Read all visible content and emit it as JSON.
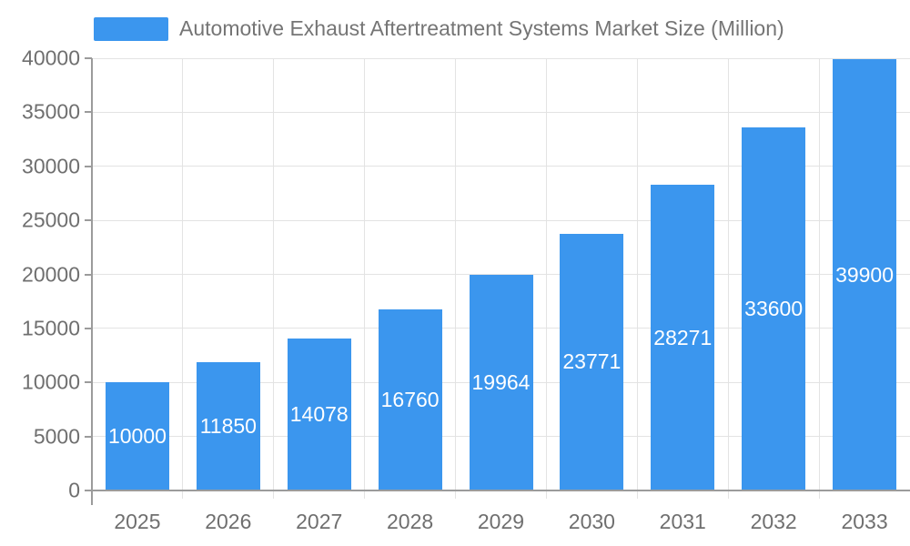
{
  "legend": {
    "label": "Automotive Exhaust Aftertreatment Systems Market Size (Million)"
  },
  "chart_data": {
    "type": "bar",
    "title": "Automotive Exhaust Aftertreatment Systems Market Size (Million)",
    "legend_entries": [
      "Automotive Exhaust Aftertreatment Systems Market Size (Million)"
    ],
    "legend_position": "top-left",
    "categories": [
      "2025",
      "2026",
      "2027",
      "2028",
      "2029",
      "2030",
      "2031",
      "2032",
      "2033"
    ],
    "values": [
      10000,
      11850,
      14078,
      16760,
      19964,
      23771,
      28271,
      33600,
      39900
    ],
    "value_labels": [
      "10000",
      "11850",
      "14078",
      "16760",
      "19964",
      "23771",
      "28271",
      "33600",
      "39900"
    ],
    "xlabel": "",
    "ylabel": "",
    "ylim": [
      0,
      40000
    ],
    "ytick_interval": 5000,
    "ytick_labels": [
      "0",
      "5000",
      "10000",
      "15000",
      "20000",
      "25000",
      "30000",
      "35000",
      "40000"
    ],
    "grid": "on",
    "colors": {
      "bar": "#3B96EE",
      "bar_value_text": "#ffffff",
      "axis_text": "#6F6F6F",
      "legend_text": "#757575",
      "grid_line": "#E3E3E3",
      "axis_line": "#9B9B9B"
    }
  }
}
